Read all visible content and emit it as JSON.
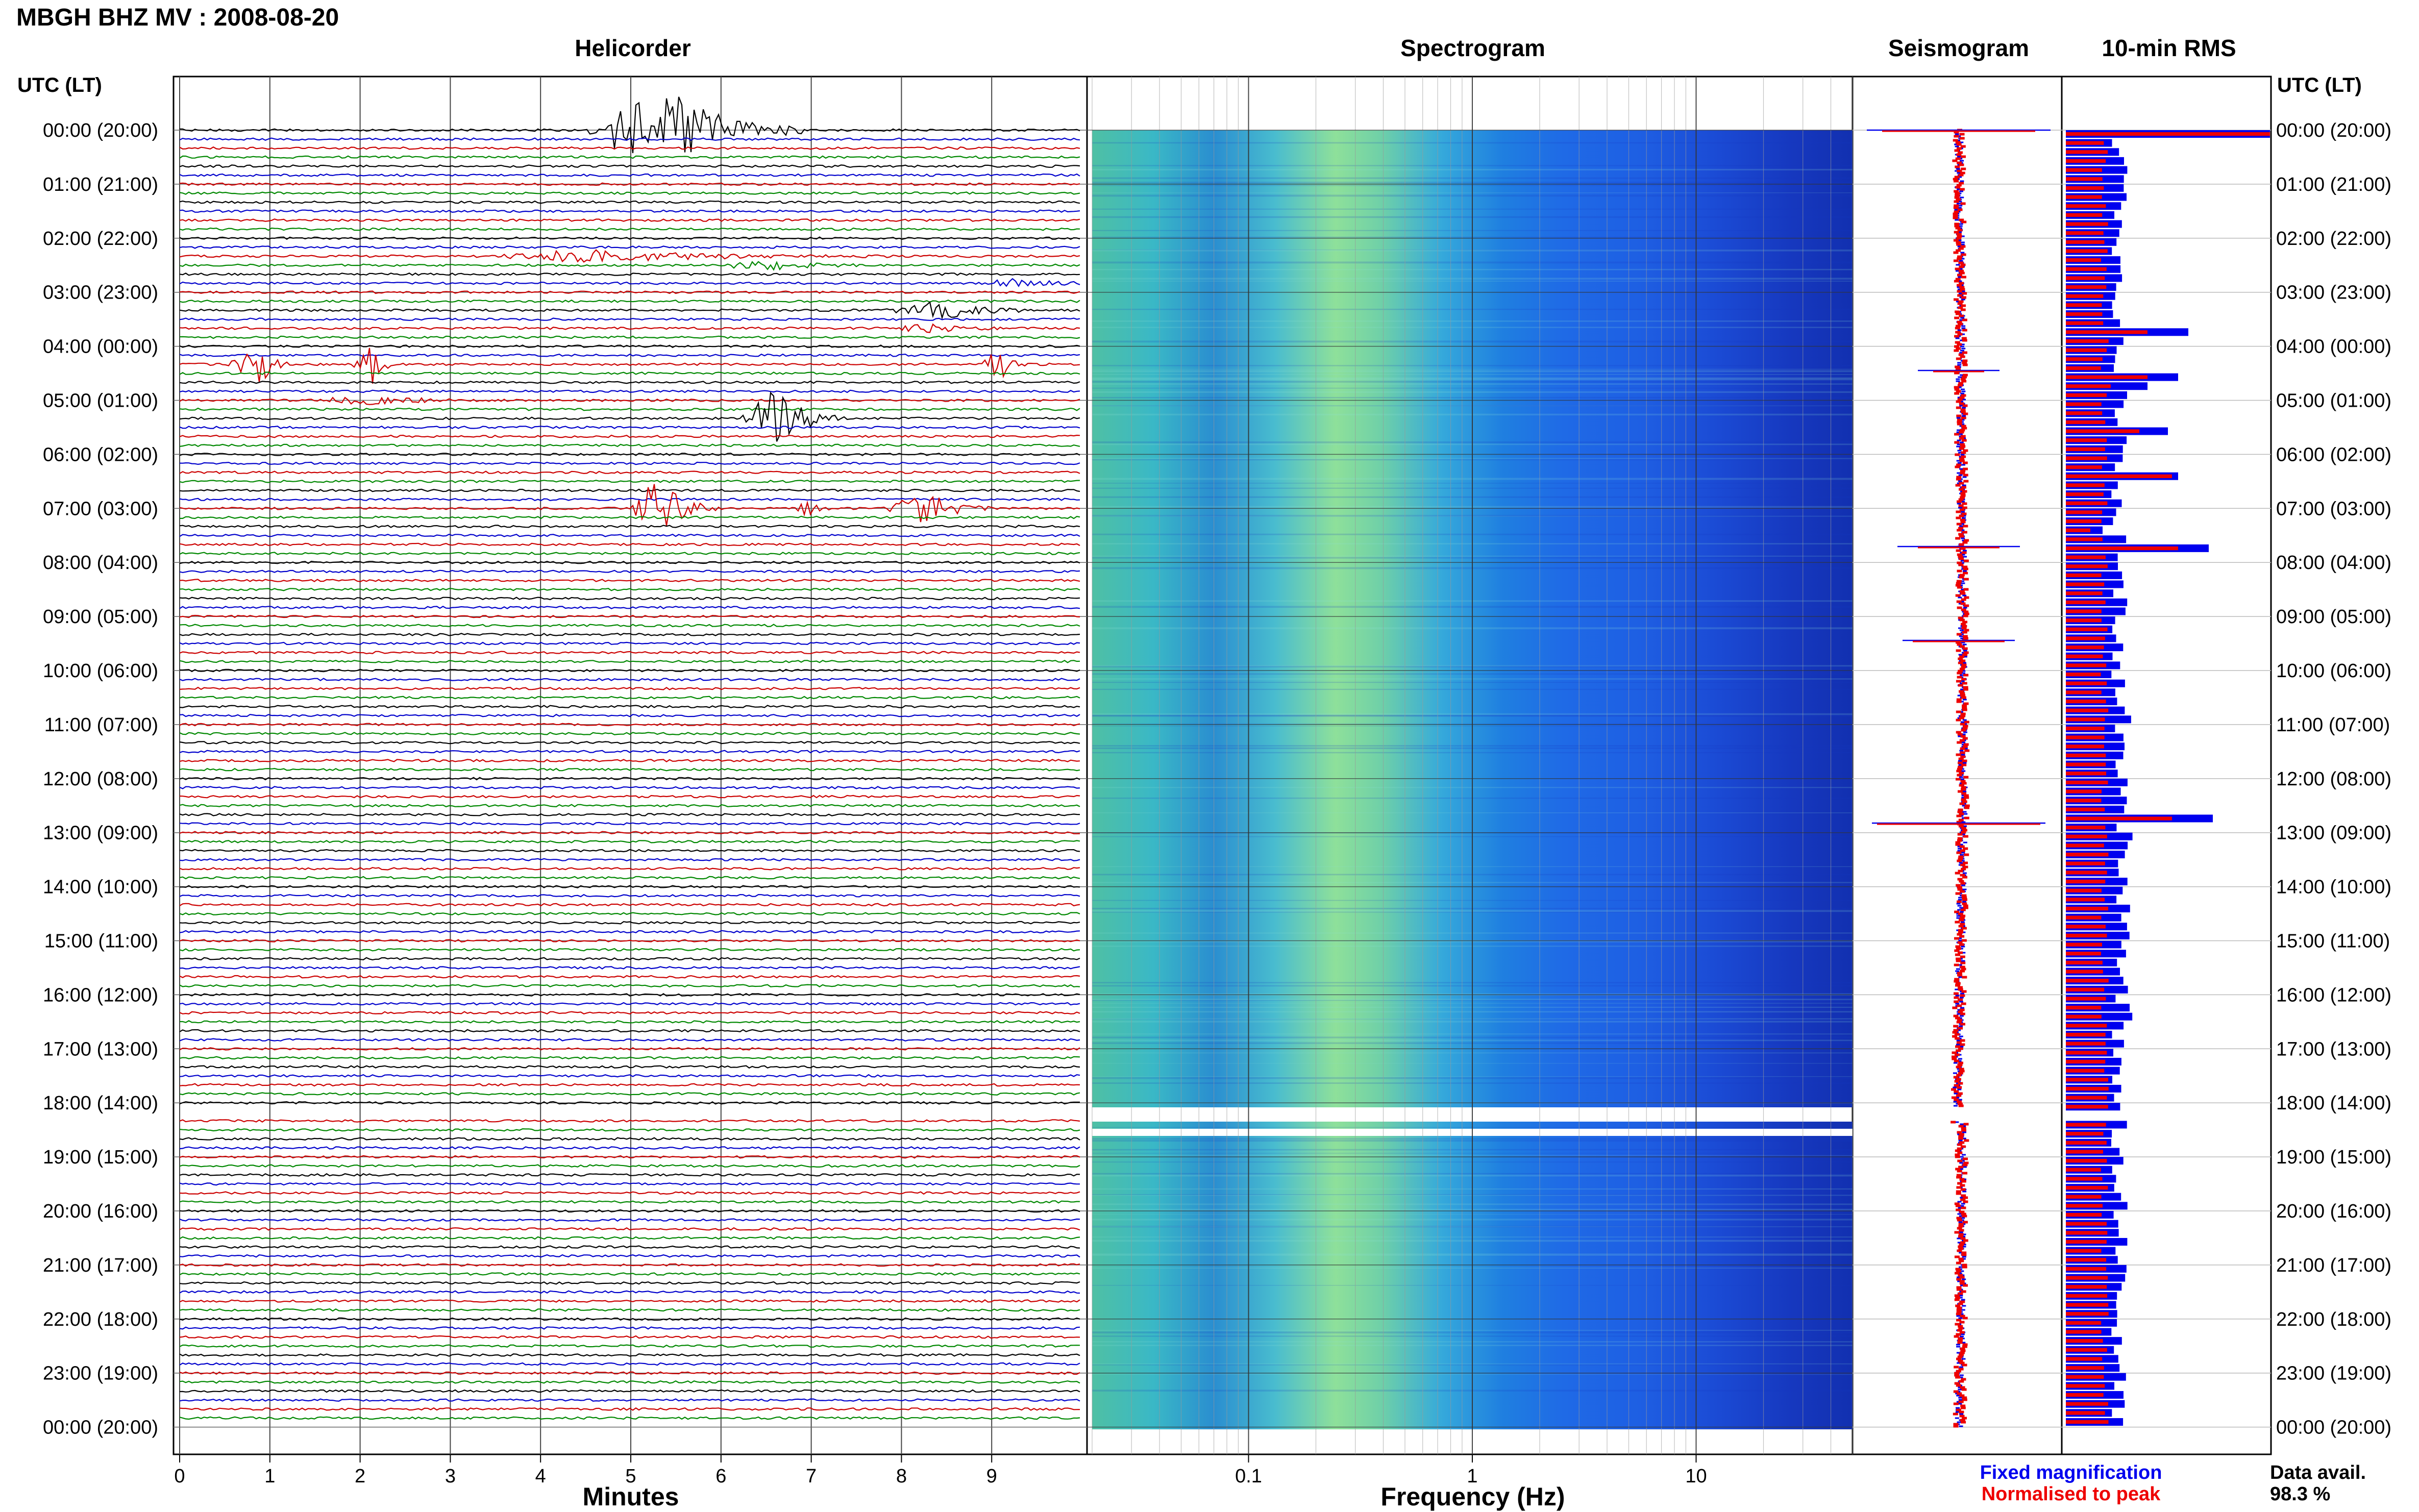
{
  "header": {
    "title": "MBGH BHZ MV : 2008-08-20"
  },
  "panels": {
    "helicorder": "Helicorder",
    "spectrogram": "Spectrogram",
    "seismogram": "Seismogram",
    "rms": "10-min RMS"
  },
  "axes": {
    "time_header_left": "UTC (LT)",
    "time_header_right": "UTC (LT)",
    "minutes_label": "Minutes",
    "frequency_label": "Frequency (Hz)"
  },
  "legend": {
    "fixed": "Fixed magnification",
    "normalised": "Normalised to peak",
    "fixed_color": "#0000ee",
    "normalised_color": "#ee0000"
  },
  "availability": {
    "label": "Data avail.",
    "value": "98.3 %"
  },
  "colors": {
    "trace_cycle": [
      "#000000",
      "#0000cc",
      "#cc0000",
      "#008800"
    ],
    "rms_fixed": "#0000ee",
    "rms_normalised": "#ee0000"
  },
  "chart_data": [
    {
      "type": "line",
      "title": "Helicorder",
      "xlabel": "Minutes",
      "x_ticks": [
        "0",
        "1",
        "2",
        "3",
        "4",
        "5",
        "6",
        "7",
        "8",
        "9"
      ],
      "xlim": [
        0,
        10
      ],
      "time_labels": [
        "00:00 (20:00)",
        "01:00 (21:00)",
        "02:00 (22:00)",
        "03:00 (23:00)",
        "04:00 (00:00)",
        "05:00 (01:00)",
        "06:00 (02:00)",
        "07:00 (03:00)",
        "08:00 (04:00)",
        "09:00 (05:00)",
        "10:00 (06:00)",
        "11:00 (07:00)",
        "12:00 (08:00)",
        "13:00 (09:00)",
        "14:00 (10:00)",
        "15:00 (11:00)",
        "16:00 (12:00)",
        "17:00 (13:00)",
        "18:00 (14:00)",
        "19:00 (15:00)",
        "20:00 (16:00)",
        "21:00 (17:00)",
        "22:00 (18:00)",
        "23:00 (19:00)",
        "00:00 (20:00)"
      ],
      "rows": 144,
      "gap_rows": [
        109
      ],
      "events": [
        {
          "row": 0,
          "start_min": 4.5,
          "end_min": 7.0,
          "peak_min": 5.3,
          "amp": 1.0
        },
        {
          "row": 14,
          "start_min": 3.4,
          "end_min": 8.0,
          "peak_min": 4.5,
          "amp": 0.12
        },
        {
          "row": 15,
          "start_min": 6.0,
          "end_min": 7.5,
          "peak_min": 6.4,
          "amp": 0.15
        },
        {
          "row": 17,
          "start_min": 9.0,
          "end_min": 10.0,
          "peak_min": 9.2,
          "amp": 0.15
        },
        {
          "row": 20,
          "start_min": 7.8,
          "end_min": 9.5,
          "peak_min": 8.4,
          "amp": 0.22
        },
        {
          "row": 22,
          "start_min": 7.9,
          "end_min": 9.2,
          "peak_min": 8.3,
          "amp": 0.1
        },
        {
          "row": 26,
          "start_min": 0.5,
          "end_min": 1.2,
          "peak_min": 0.9,
          "amp": 0.45
        },
        {
          "row": 26,
          "start_min": 1.9,
          "end_min": 2.4,
          "peak_min": 2.15,
          "amp": 0.4
        },
        {
          "row": 26,
          "start_min": 8.9,
          "end_min": 9.4,
          "peak_min": 9.05,
          "amp": 0.45
        },
        {
          "row": 30,
          "start_min": 1.5,
          "end_min": 3.5,
          "peak_min": 2.0,
          "amp": 0.1
        },
        {
          "row": 32,
          "start_min": 6.2,
          "end_min": 7.4,
          "peak_min": 6.55,
          "amp": 0.75
        },
        {
          "row": 42,
          "start_min": 5.0,
          "end_min": 6.0,
          "peak_min": 5.3,
          "amp": 0.7
        },
        {
          "row": 42,
          "start_min": 7.8,
          "end_min": 9.0,
          "peak_min": 8.3,
          "amp": 0.35
        },
        {
          "row": 42,
          "start_min": 6.8,
          "end_min": 7.2,
          "peak_min": 7.0,
          "amp": 0.2
        }
      ]
    },
    {
      "type": "heatmap",
      "title": "Spectrogram",
      "xlabel": "Frequency (Hz)",
      "x_scale": "log",
      "xlim": [
        0.02,
        50
      ],
      "x_ticks": [
        "0.1",
        "1",
        "10"
      ],
      "y_range_hours": [
        0,
        24
      ],
      "gap_hours": [
        18.15,
        18.5
      ]
    },
    {
      "type": "line",
      "title": "Seismogram",
      "description_series": [
        "Fixed magnification",
        "Normalised to peak"
      ],
      "y_range_hours": [
        0,
        24
      ]
    },
    {
      "type": "bar",
      "title": "10-min RMS",
      "orientation": "horizontal",
      "series_names": [
        "Fixed magnification",
        "Normalised to peak"
      ],
      "bins": 144,
      "y_range_hours": [
        0,
        24
      ],
      "spikes": [
        {
          "bin": 0,
          "fixed": 1.0,
          "normalised": 1.0
        },
        {
          "bin": 22,
          "fixed": 0.6,
          "normalised": 0.4
        },
        {
          "bin": 27,
          "fixed": 0.55,
          "normalised": 0.4
        },
        {
          "bin": 28,
          "fixed": 0.4,
          "normalised": 0.22
        },
        {
          "bin": 29,
          "fixed": 0.3,
          "normalised": 0.2
        },
        {
          "bin": 33,
          "fixed": 0.5,
          "normalised": 0.36
        },
        {
          "bin": 38,
          "fixed": 0.55,
          "normalised": 0.52
        },
        {
          "bin": 46,
          "fixed": 0.7,
          "normalised": 0.55
        },
        {
          "bin": 44,
          "fixed": 0.18,
          "normalised": 0.12
        },
        {
          "bin": 76,
          "fixed": 0.72,
          "normalised": 0.52
        }
      ],
      "baseline_fixed": 0.27,
      "baseline_normalised": 0.2,
      "gap_bins": [
        109
      ]
    }
  ]
}
